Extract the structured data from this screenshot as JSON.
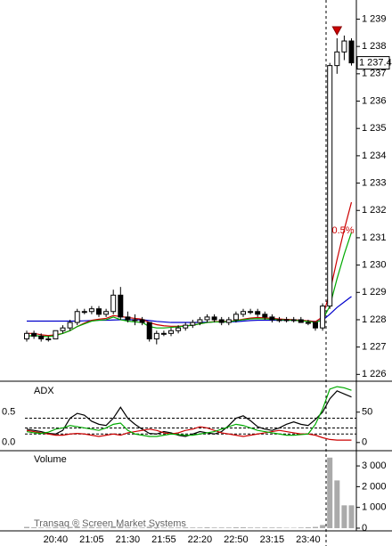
{
  "chart_data": [
    {
      "type": "candlestick",
      "categories": [
        null,
        null,
        null,
        null,
        "20:40",
        null,
        null,
        null,
        null,
        "21:05",
        null,
        null,
        null,
        null,
        "21:30",
        null,
        null,
        null,
        null,
        "21:55",
        null,
        null,
        null,
        null,
        "22:20",
        null,
        null,
        null,
        null,
        "22:50",
        null,
        null,
        null,
        null,
        "23:15",
        null,
        null,
        null,
        null,
        "23:40",
        null,
        null,
        null,
        null,
        null,
        null
      ],
      "open": [
        1227.3,
        1227.5,
        1227.4,
        1227.3,
        1227.3,
        1227.6,
        1227.7,
        1227.9,
        1228.3,
        1228.3,
        1228.4,
        1228.2,
        1228.3,
        1228.9,
        1228.1,
        1228.0,
        1228.0,
        1227.9,
        1227.3,
        1227.5,
        1227.5,
        1227.6,
        1227.7,
        1227.8,
        1227.9,
        1228.0,
        1228.1,
        1228.0,
        1227.9,
        1228.0,
        1228.2,
        1228.3,
        1228.3,
        1228.2,
        1228.1,
        1228.0,
        1228.0,
        1228.0,
        1228.0,
        1227.9,
        1227.9,
        1227.7,
        1228.5,
        1237.3,
        1237.8,
        1238.2
      ],
      "high": [
        1227.6,
        1227.6,
        1227.5,
        1227.4,
        1227.6,
        1227.8,
        1228.0,
        1228.4,
        1228.4,
        1228.5,
        1228.5,
        1228.4,
        1229.1,
        1229.2,
        1228.3,
        1228.2,
        1228.1,
        1227.9,
        1227.6,
        1227.6,
        1227.7,
        1227.8,
        1227.9,
        1228.0,
        1228.1,
        1228.2,
        1228.2,
        1228.1,
        1228.1,
        1228.3,
        1228.4,
        1228.4,
        1228.4,
        1228.3,
        1228.2,
        1228.1,
        1228.1,
        1228.1,
        1228.1,
        1228.0,
        1227.9,
        1228.6,
        1237.4,
        1238.3,
        1238.4,
        1238.3
      ],
      "low": [
        1227.2,
        1227.3,
        1227.2,
        1227.2,
        1227.3,
        1227.5,
        1227.6,
        1227.8,
        1228.2,
        1228.2,
        1228.1,
        1228.1,
        1228.2,
        1228.0,
        1227.9,
        1227.8,
        1227.8,
        1227.2,
        1227.1,
        1227.4,
        1227.4,
        1227.5,
        1227.6,
        1227.7,
        1227.8,
        1227.9,
        1227.9,
        1227.8,
        1227.8,
        1227.9,
        1228.1,
        1228.2,
        1228.1,
        1228.0,
        1227.9,
        1227.9,
        1227.9,
        1227.9,
        1227.9,
        1227.8,
        1227.6,
        1227.6,
        1228.4,
        1237.0,
        1237.5,
        1237.3
      ],
      "close": [
        1227.5,
        1227.4,
        1227.3,
        1227.3,
        1227.6,
        1227.7,
        1227.9,
        1228.3,
        1228.3,
        1228.4,
        1228.2,
        1228.3,
        1228.9,
        1228.1,
        1228.0,
        1228.0,
        1227.9,
        1227.3,
        1227.5,
        1227.5,
        1227.6,
        1227.7,
        1227.8,
        1227.9,
        1228.0,
        1228.1,
        1228.0,
        1227.9,
        1228.0,
        1228.2,
        1228.3,
        1228.3,
        1228.2,
        1228.1,
        1228.0,
        1228.0,
        1228.0,
        1228.0,
        1227.9,
        1227.9,
        1227.7,
        1228.5,
        1237.3,
        1237.8,
        1238.2,
        1237.4
      ],
      "series": [
        {
          "color": "#0000cc",
          "values": [
            1227.95,
            1227.95,
            1227.95,
            1227.95,
            1227.95,
            1227.95,
            1227.95,
            1227.95,
            1227.96,
            1227.97,
            1227.98,
            1227.98,
            1227.99,
            1228.0,
            1228.0,
            1228.0,
            1228.0,
            1227.97,
            1227.94,
            1227.92,
            1227.9,
            1227.9,
            1227.9,
            1227.9,
            1227.9,
            1227.91,
            1227.92,
            1227.92,
            1227.92,
            1227.93,
            1227.95,
            1227.97,
            1227.98,
            1227.98,
            1227.98,
            1227.98,
            1227.98,
            1227.98,
            1227.97,
            1227.96,
            1227.94,
            1227.98,
            1228.2,
            1228.45,
            1228.65,
            1228.85
          ]
        },
        {
          "color": "#cc0000",
          "values": [
            1227.5,
            1227.5,
            1227.45,
            1227.42,
            1227.45,
            1227.5,
            1227.6,
            1227.75,
            1227.88,
            1227.98,
            1228.02,
            1228.05,
            1228.15,
            1228.12,
            1228.08,
            1228.05,
            1228.02,
            1227.9,
            1227.82,
            1227.78,
            1227.76,
            1227.76,
            1227.78,
            1227.8,
            1227.85,
            1227.9,
            1227.93,
            1227.93,
            1227.94,
            1227.97,
            1228.02,
            1228.06,
            1228.08,
            1228.07,
            1228.05,
            1228.03,
            1228.01,
            1228.0,
            1227.98,
            1227.96,
            1227.93,
            1228.1,
            1229.0,
            1230.2,
            1231.3,
            1232.3
          ]
        },
        {
          "color": "#00aa00",
          "values": [
            1227.4,
            1227.42,
            1227.4,
            1227.38,
            1227.42,
            1227.5,
            1227.6,
            1227.75,
            1227.85,
            1227.95,
            1227.98,
            1228.0,
            1228.1,
            1228.0,
            1227.95,
            1227.92,
            1227.9,
            1227.75,
            1227.7,
            1227.7,
            1227.72,
            1227.74,
            1227.77,
            1227.8,
            1227.85,
            1227.9,
            1227.92,
            1227.92,
            1227.93,
            1227.96,
            1228.0,
            1228.03,
            1228.04,
            1228.03,
            1228.02,
            1228.0,
            1227.99,
            1227.98,
            1227.96,
            1227.94,
            1227.9,
            1228.0,
            1228.5,
            1229.5,
            1230.4,
            1231.2
          ]
        }
      ],
      "ylim": [
        1225.75,
        1239.7
      ],
      "yticks": [
        {
          "value": 1226,
          "label": "1 226"
        },
        {
          "value": 1227,
          "label": "1 227"
        },
        {
          "value": 1228,
          "label": "1 228"
        },
        {
          "value": 1229,
          "label": "1 229"
        },
        {
          "value": 1230,
          "label": "1 230"
        },
        {
          "value": 1231,
          "label": "1 231"
        },
        {
          "value": 1232,
          "label": "1 232"
        },
        {
          "value": 1233,
          "label": "1 233"
        },
        {
          "value": 1234,
          "label": "1 234"
        },
        {
          "value": 1235,
          "label": "1 235"
        },
        {
          "value": 1236,
          "label": "1 236"
        },
        {
          "value": 1237,
          "label": "1 237"
        },
        {
          "value": 1238,
          "label": "1 238"
        },
        {
          "value": 1239,
          "label": "1 239"
        }
      ],
      "last_price": {
        "value": 1237.4,
        "label": "1 237.4"
      },
      "annotation": "0.5%"
    },
    {
      "type": "line",
      "title": "ADX",
      "series": [
        {
          "color": "#000000",
          "values": [
            22,
            20,
            18,
            15,
            14,
            20,
            40,
            48,
            45,
            35,
            30,
            28,
            40,
            58,
            40,
            30,
            22,
            15,
            14,
            18,
            16,
            12,
            10,
            14,
            18,
            16,
            14,
            18,
            28,
            40,
            44,
            36,
            26,
            22,
            20,
            24,
            30,
            34,
            30,
            28,
            38,
            50,
            72,
            85,
            80,
            75
          ]
        },
        {
          "color": "#cc0000",
          "values": [
            20,
            18,
            16,
            14,
            12,
            12,
            14,
            15,
            14,
            12,
            10,
            12,
            14,
            12,
            16,
            18,
            20,
            22,
            20,
            16,
            14,
            16,
            20,
            22,
            26,
            24,
            20,
            16,
            14,
            12,
            10,
            12,
            14,
            16,
            18,
            20,
            18,
            16,
            14,
            14,
            12,
            8,
            5,
            4,
            4,
            4
          ]
        },
        {
          "color": "#00aa00",
          "values": [
            18,
            16,
            15,
            17,
            22,
            24,
            28,
            26,
            24,
            22,
            20,
            24,
            30,
            32,
            20,
            14,
            12,
            10,
            10,
            12,
            14,
            13,
            12,
            12,
            14,
            16,
            18,
            22,
            26,
            30,
            28,
            24,
            20,
            18,
            16,
            14,
            12,
            12,
            13,
            14,
            30,
            55,
            88,
            92,
            90,
            86
          ]
        }
      ],
      "ylim": [
        -12,
        98
      ],
      "yticks": [
        0,
        50
      ],
      "y2lim": [
        -0.12,
        0.98
      ],
      "y2ticks": [
        {
          "value": 0,
          "label": "0.0"
        },
        {
          "value": 0.5,
          "label": "0.5"
        }
      ],
      "levels": [
        40,
        24,
        14
      ]
    },
    {
      "type": "bar",
      "title": "Volume",
      "color": "#aaaaaa",
      "values": [
        60,
        40,
        30,
        30,
        50,
        40,
        60,
        80,
        40,
        50,
        40,
        30,
        90,
        80,
        40,
        30,
        30,
        70,
        50,
        30,
        30,
        30,
        40,
        30,
        30,
        40,
        30,
        30,
        30,
        40,
        40,
        30,
        30,
        30,
        30,
        30,
        20,
        20,
        30,
        40,
        60,
        150,
        3400,
        2300,
        1100,
        1100
      ],
      "ylim": [
        -130,
        3690
      ],
      "yticks": [
        {
          "value": 0,
          "label": "0"
        },
        {
          "value": 1000,
          "label": "1 000"
        },
        {
          "value": 2000,
          "label": "2 000"
        },
        {
          "value": 3000,
          "label": "3 000"
        }
      ],
      "watermark": "Transaq ® Screen Market Systems"
    }
  ]
}
